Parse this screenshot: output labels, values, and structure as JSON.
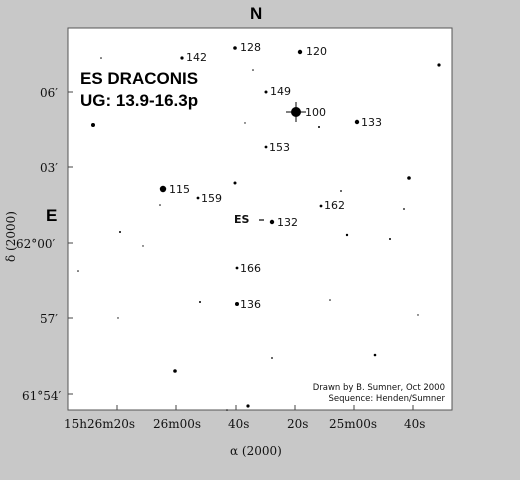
{
  "compass": {
    "north": "N",
    "east": "E"
  },
  "title": {
    "line1": "ES DRACONIS",
    "line2": "UG: 13.9-16.3p"
  },
  "credit": {
    "line1": "Drawn by B. Sumner, Oct 2000",
    "line2": "Sequence: Henden/Sumner"
  },
  "axes": {
    "x_label": "α (2000)",
    "y_label": "δ (2000)",
    "x_ticks": [
      "15h26m20s",
      "26m00s",
      "40s",
      "20s",
      "25m00s",
      "40s"
    ],
    "y_ticks": [
      "06′",
      "03′",
      "62°00′",
      "57′",
      "61°54′"
    ]
  },
  "target": {
    "label": "ES"
  },
  "comparison_stars": [
    {
      "label": "142"
    },
    {
      "label": "128"
    },
    {
      "label": "120"
    },
    {
      "label": "149"
    },
    {
      "label": "100"
    },
    {
      "label": "133"
    },
    {
      "label": "153"
    },
    {
      "label": "115"
    },
    {
      "label": "159"
    },
    {
      "label": "162"
    },
    {
      "label": "132"
    },
    {
      "label": "166"
    },
    {
      "label": "136"
    }
  ]
}
